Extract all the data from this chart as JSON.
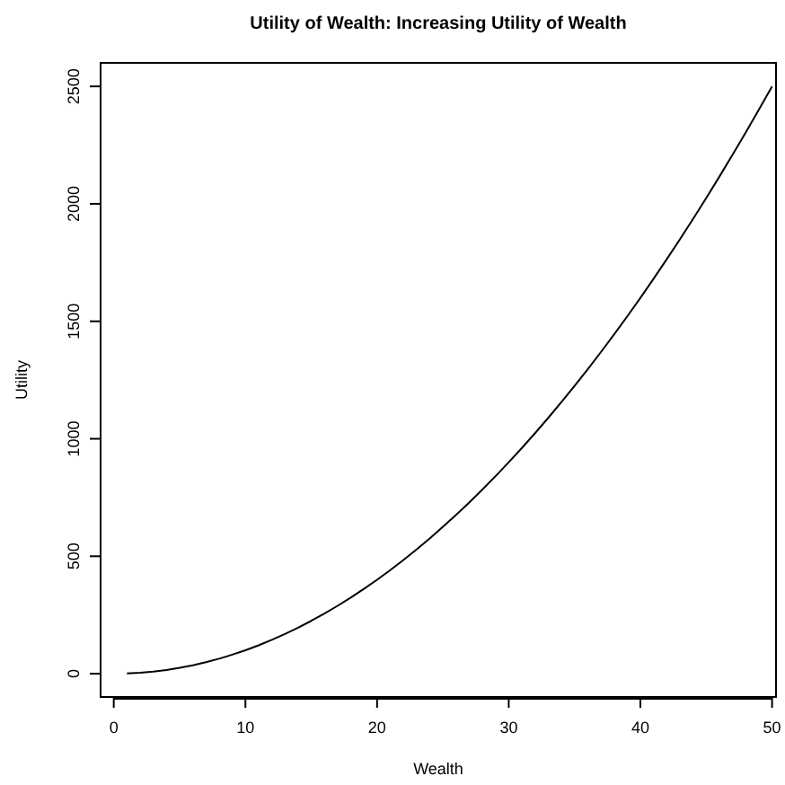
{
  "chart_data": {
    "type": "line",
    "title": "Utility of Wealth: Increasing Utility of Wealth",
    "xlabel": "Wealth",
    "ylabel": "Utility",
    "x": [
      1,
      2,
      3,
      4,
      5,
      6,
      7,
      8,
      9,
      10,
      11,
      12,
      13,
      14,
      15,
      16,
      17,
      18,
      19,
      20,
      21,
      22,
      23,
      24,
      25,
      26,
      27,
      28,
      29,
      30,
      31,
      32,
      33,
      34,
      35,
      36,
      37,
      38,
      39,
      40,
      41,
      42,
      43,
      44,
      45,
      46,
      47,
      48,
      49,
      50
    ],
    "series": [
      {
        "color": "#000000",
        "values": [
          1,
          4,
          9,
          16,
          25,
          36,
          49,
          64,
          81,
          100,
          121,
          144,
          169,
          196,
          225,
          256,
          289,
          324,
          361,
          400,
          441,
          484,
          529,
          576,
          625,
          676,
          729,
          784,
          841,
          900,
          961,
          1024,
          1089,
          1156,
          1225,
          1296,
          1369,
          1444,
          1521,
          1600,
          1681,
          1764,
          1849,
          1936,
          2025,
          2116,
          2209,
          2304,
          2401,
          2500
        ]
      }
    ],
    "xlim": [
      -1,
      50.3
    ],
    "ylim": [
      -99,
      2600
    ],
    "xticks": [
      0,
      10,
      20,
      30,
      40,
      50
    ],
    "yticks": [
      0,
      500,
      1000,
      1500,
      2000,
      2500
    ],
    "grid": false,
    "marker": "none",
    "line_style": "solid"
  }
}
